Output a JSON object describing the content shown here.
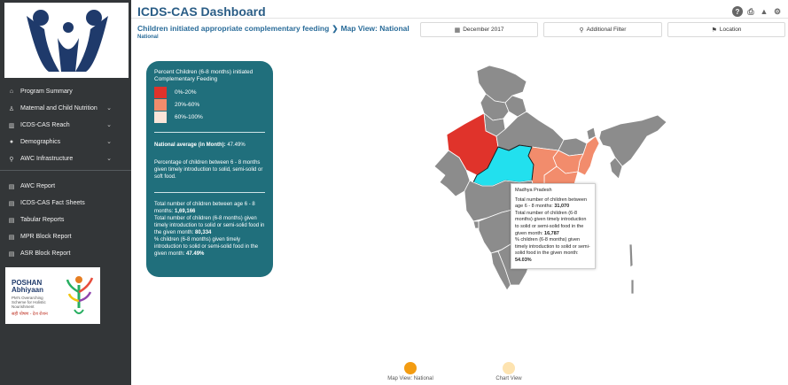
{
  "app": {
    "title": "ICDS-CAS Dashboard"
  },
  "sidebar": {
    "items": [
      {
        "label": "Program Summary",
        "icon": "home-icon",
        "chevron": false
      },
      {
        "label": "Maternal and Child Nutrition",
        "icon": "child-icon",
        "chevron": true
      },
      {
        "label": "ICDS-CAS Reach",
        "icon": "bar-chart-icon",
        "chevron": true
      },
      {
        "label": "Demographics",
        "icon": "users-icon",
        "chevron": true
      },
      {
        "label": "AWC Infrastructure",
        "icon": "map-marker-icon",
        "chevron": true
      }
    ],
    "reports": [
      {
        "label": "AWC Report",
        "icon": "document-icon"
      },
      {
        "label": "ICDS-CAS Fact Sheets",
        "icon": "document-icon"
      },
      {
        "label": "Tabular Reports",
        "icon": "document-icon"
      },
      {
        "label": "MPR Block Report",
        "icon": "document-icon"
      },
      {
        "label": "ASR Block Report",
        "icon": "document-icon"
      }
    ],
    "poshan": {
      "title": "POSHAN",
      "subtitle": "Abhiyaan",
      "tagline": "PM's Overarching Scheme for Holistic Nourishment",
      "hindi": "सही पोषण - देश रोशन"
    }
  },
  "header": {
    "breadcrumb": "Children initiated appropriate complementary feeding",
    "breadcrumb_sep": "❯",
    "view": "Map View: National",
    "sub": "National",
    "filters": [
      {
        "label": "December 2017",
        "icon": "calendar-icon"
      },
      {
        "label": "Additional Filter",
        "icon": "search-icon"
      },
      {
        "label": "Location",
        "icon": "map-marker-icon"
      }
    ]
  },
  "legend": {
    "title": "Percent Children (6-8 months) initiated Complementary Feeding",
    "ranges": [
      {
        "label": "0%-20%",
        "color": "#e0332b"
      },
      {
        "label": "20%-60%",
        "color": "#f28c6c"
      },
      {
        "label": "60%-100%",
        "color": "#fbe5d9"
      }
    ],
    "national_avg_label": "National average (in Month):",
    "national_avg_value": "47.49%",
    "description": "Percentage of children between 6 - 8 months given timely introduction to solid, semi-solid or soft food.",
    "total_label": "Total number of children between age 6 - 8 months:",
    "total_value": "1,69,166",
    "given_label": "Total number of children (6-8 months) given timely introduction to solid or semi-solid food in the given month:",
    "given_value": "80,334",
    "pct_label": "% children (6-8 months) given timely introduction to solid or semi-solid food in the given month:",
    "pct_value": "47.49%"
  },
  "tooltip": {
    "state": "Madhya Pradesh",
    "total_label": "Total number of children between age 6 - 8 months:",
    "total_value": "31,070",
    "given_label": "Total number of children (6-8 months) given timely introduction to solid or semi-solid food in the given month:",
    "given_value": "16,787",
    "pct_label": "% children (6-8 months) given timely introduction to solid or semi-solid food in the given month:",
    "pct_value": "54.03%"
  },
  "map_colors": {
    "default": "#8c8c8c",
    "rajasthan": "#e0332b",
    "mp_highlight": "#22e0ee",
    "east": "#f28c6c"
  },
  "toggles": [
    {
      "label": "Map View: National",
      "color": "#f39c12"
    },
    {
      "label": "Chart View",
      "color": "#fde3b0"
    }
  ]
}
